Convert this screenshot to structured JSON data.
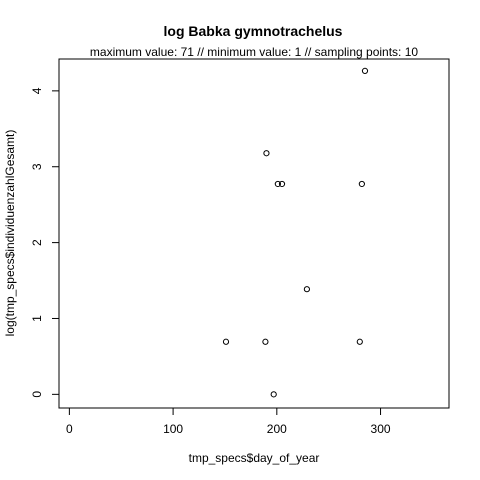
{
  "chart_data": {
    "type": "scatter",
    "title": "log Babka gymnotrachelus",
    "subtitle": "maximum value: 71  //  minimum value: 1  // sampling points: 10",
    "xlabel": "tmp_specs$day_of_year",
    "ylabel": "log(tmp_specs$individuenzahlGesamt)",
    "xlim": [
      -10,
      366
    ],
    "ylim": [
      -0.18,
      4.42
    ],
    "xticks": [
      0,
      100,
      200,
      300
    ],
    "yticks": [
      0,
      1,
      2,
      3,
      4
    ],
    "grid": false,
    "marker": "open-circle",
    "points": [
      {
        "x": 151,
        "y": 0.693
      },
      {
        "x": 189,
        "y": 0.693
      },
      {
        "x": 190,
        "y": 3.178
      },
      {
        "x": 197,
        "y": 0.0
      },
      {
        "x": 201,
        "y": 2.773
      },
      {
        "x": 205,
        "y": 2.773
      },
      {
        "x": 229,
        "y": 1.386
      },
      {
        "x": 280,
        "y": 0.693
      },
      {
        "x": 282,
        "y": 2.773
      },
      {
        "x": 285,
        "y": 4.263
      }
    ]
  }
}
